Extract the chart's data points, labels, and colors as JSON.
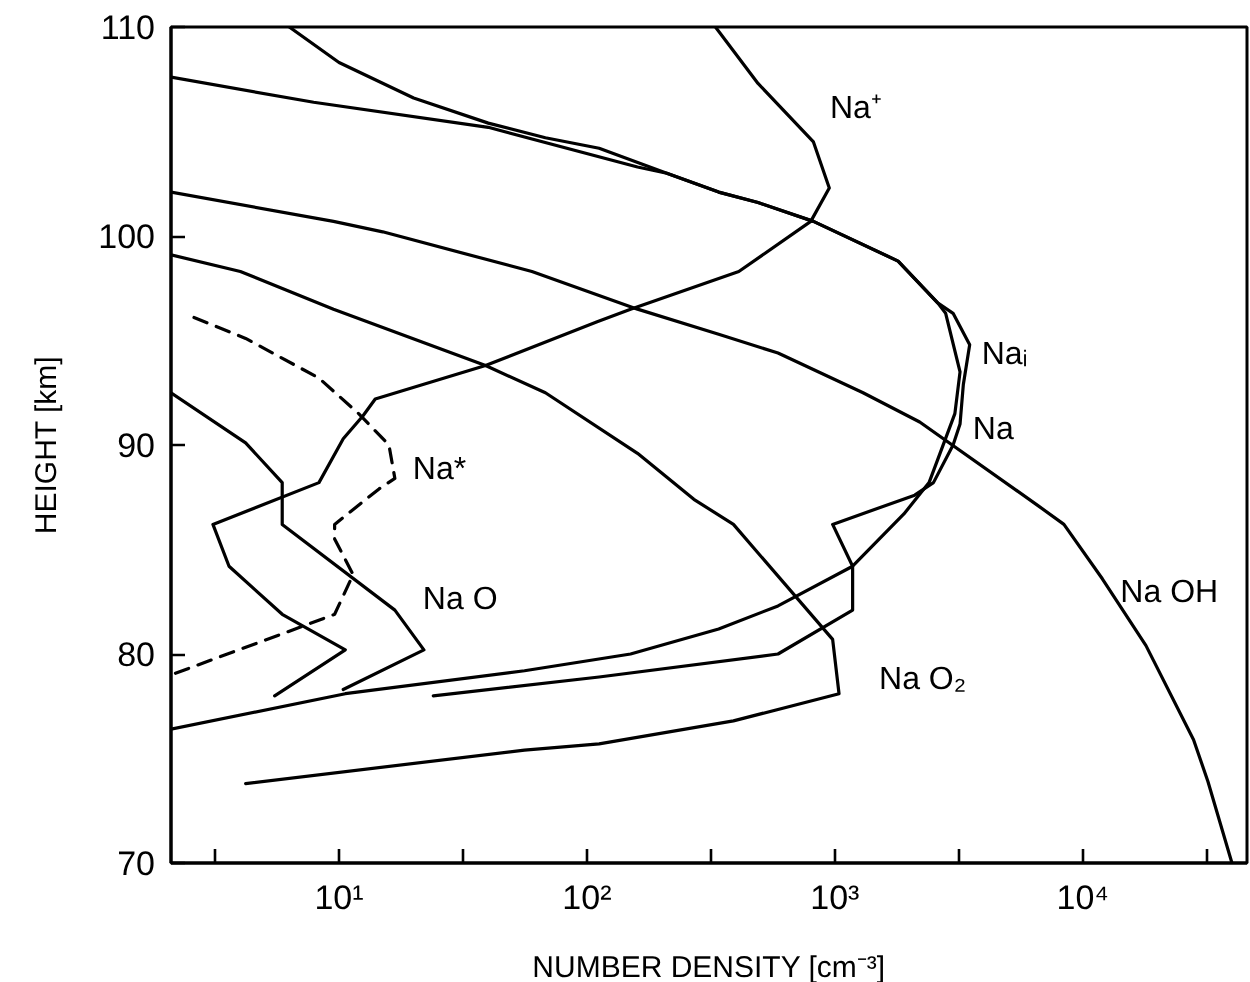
{
  "chart_data": {
    "type": "line",
    "xlabel": "NUMBER DENSITY [cm⁻³]",
    "ylabel": "HEIGHT [km]",
    "log": "x",
    "grid": false,
    "legend": false,
    "line_style": "solid",
    "xlim": [
      2.1,
      46000
    ],
    "ylim": [
      70,
      110
    ],
    "xticks": [
      {
        "value": 3.16,
        "label": null
      },
      {
        "value": 10,
        "label": "10¹"
      },
      {
        "value": 31.6,
        "label": null
      },
      {
        "value": 100,
        "label": "10²"
      },
      {
        "value": 316,
        "label": null
      },
      {
        "value": 1000,
        "label": "10³"
      },
      {
        "value": 3160,
        "label": null
      },
      {
        "value": 10000,
        "label": "10⁴"
      },
      {
        "value": 31600,
        "label": null
      }
    ],
    "yticks": [
      70,
      80,
      90,
      100,
      110
    ],
    "series": [
      {
        "name": "Na⁺",
        "color": "#000000",
        "x": [
          330,
          490,
          820,
          950,
          800,
          410,
          150,
          110,
          39,
          14,
          12.5,
          10.4,
          8.3,
          3.1,
          3.6,
          5.9,
          10.6,
          5.5
        ],
        "values": [
          110,
          107.3,
          104.5,
          102.3,
          100.7,
          98.3,
          96.5,
          95.9,
          93.8,
          92.2,
          91.4,
          90.3,
          88.2,
          86.2,
          84.2,
          81.9,
          80.2,
          78.0
        ]
      },
      {
        "name": "Naᵢ",
        "color": "#000000",
        "x": [
          2.1,
          7.9,
          40,
          160,
          210,
          340,
          490,
          820,
          1800,
          2600,
          3000,
          3500,
          3300,
          3200,
          3000,
          2500,
          2100,
          980,
          1180,
          1180,
          590,
          112,
          24
        ],
        "values": [
          107.6,
          106.4,
          105.2,
          103.3,
          103.0,
          102.1,
          101.6,
          100.7,
          98.8,
          96.8,
          96.3,
          94.8,
          92.9,
          91.0,
          90.0,
          88.2,
          87.6,
          86.2,
          84.2,
          82.1,
          80.0,
          78.9,
          78.0
        ]
      },
      {
        "name": "Na",
        "color": "#000000",
        "x": [
          6.3,
          10,
          20,
          40,
          68,
          112,
          210,
          340,
          490,
          820,
          1800,
          2600,
          2800,
          3200,
          3050,
          2600,
          2400,
          1900,
          1180,
          590,
          340,
          150,
          56,
          10.6,
          2.1
        ],
        "values": [
          110,
          108.3,
          106.6,
          105.4,
          104.7,
          104.2,
          103.0,
          102.1,
          101.6,
          100.7,
          98.8,
          96.8,
          96.3,
          93.5,
          91.5,
          89.3,
          88.2,
          86.7,
          84.2,
          82.3,
          81.2,
          80.0,
          79.2,
          78.1,
          76.4
        ]
      },
      {
        "name": "Na OH",
        "color": "#000000",
        "x": [
          2.1,
          9.5,
          15,
          60,
          160,
          340,
          590,
          1300,
          2200,
          6600,
          8400,
          12000,
          18000,
          28000,
          32000,
          40000
        ],
        "values": [
          102.1,
          100.7,
          100.2,
          98.3,
          96.5,
          95.3,
          94.4,
          92.5,
          91.1,
          87.1,
          86.2,
          83.6,
          80.4,
          75.9,
          73.9,
          70
        ]
      },
      {
        "name": "Na O₂",
        "color": "#000000",
        "x": [
          2.1,
          4.0,
          9.5,
          39,
          68,
          160,
          270,
          390,
          980,
          1040,
          390,
          112,
          56,
          4.2
        ],
        "values": [
          99.1,
          98.3,
          96.5,
          93.8,
          92.5,
          89.6,
          87.4,
          86.2,
          80.7,
          78.1,
          76.8,
          75.7,
          75.4,
          73.8
        ]
      },
      {
        "name": "Na O",
        "color": "#000000",
        "x": [
          2.1,
          4.2,
          5.9,
          5.9,
          16.8,
          22,
          10.4
        ],
        "values": [
          92.5,
          90.1,
          88.2,
          86.2,
          82.1,
          80.2,
          78.3
        ]
      },
      {
        "name": "Na*",
        "color": "#000000",
        "line_style": "dashed",
        "x": [
          2.6,
          4.2,
          8.3,
          12,
          15.9,
          16.8,
          14.5,
          9.6,
          9.6,
          11.4,
          9.6,
          5.7,
          2.1
        ],
        "values": [
          96.1,
          95.1,
          93.2,
          91.5,
          90.0,
          88.4,
          87.9,
          86.2,
          85.5,
          83.8,
          81.9,
          80.9,
          79.0
        ]
      }
    ]
  }
}
